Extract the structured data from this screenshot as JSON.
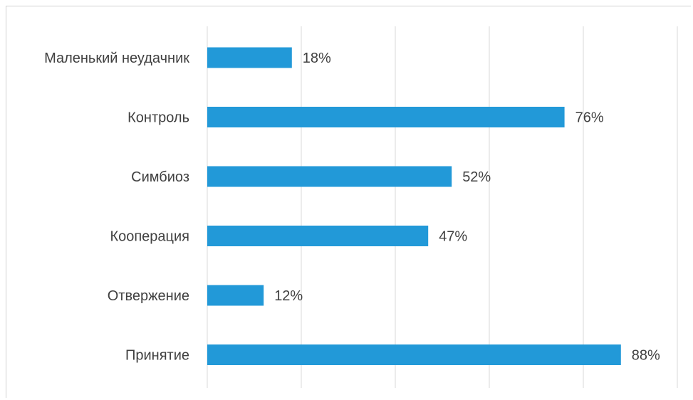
{
  "chart_data": {
    "type": "bar",
    "orientation": "horizontal",
    "categories": [
      "Маленький неудачник",
      "Контроль",
      "Симбиоз",
      "Кооперация",
      "Отвержение",
      "Принятие"
    ],
    "values": [
      18,
      76,
      52,
      47,
      12,
      88
    ],
    "data_labels": [
      "18%",
      "76%",
      "52%",
      "47%",
      "12%",
      "88%"
    ],
    "unit": "%",
    "xlim": [
      0,
      100
    ],
    "gridlines": "vertical",
    "grid_step": 20,
    "x_tick_labels_shown": false,
    "legend": "none",
    "title": "",
    "bar_color": "#2299d8",
    "gridline_color": "#d9d9d9",
    "text_color": "#404040"
  }
}
